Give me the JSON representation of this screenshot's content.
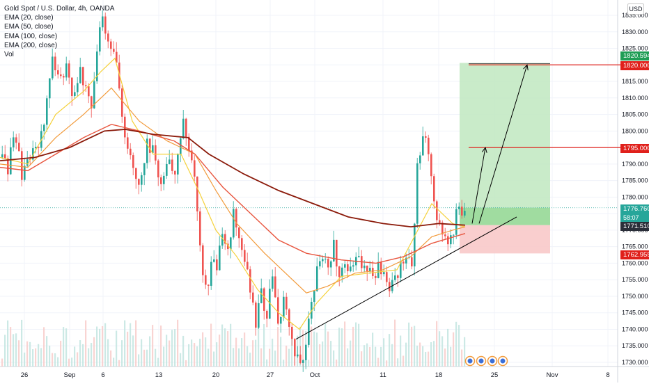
{
  "legend": {
    "title": "Gold Spot / U.S. Dollar, 4h, OANDA",
    "items": [
      "EMA (20, close)",
      "EMA (50, close)",
      "EMA (100, close)",
      "EMA (200, close)",
      "Vol"
    ]
  },
  "currency": "USD",
  "colors": {
    "up": "#26a69a",
    "down": "#ef5350",
    "ema20": "#f5d13a",
    "ema50": "#f29a3a",
    "ema100": "#e8553e",
    "ema200": "#8b1a0a",
    "target_zone": "#bfe8bf",
    "stop_zone": "#f8c9c9",
    "level_line": "#e0201b",
    "trendline": "#000000"
  },
  "chart_data": {
    "type": "candlestick",
    "symbol": "Gold Spot / U.S. Dollar",
    "timeframe": "4h",
    "ylim": [
      1728,
      1838
    ],
    "y_ticks": [
      1730,
      1735,
      1740,
      1745,
      1750,
      1755,
      1760,
      1765,
      1770,
      1775,
      1780,
      1785,
      1790,
      1795,
      1800,
      1805,
      1810,
      1815,
      1820,
      1825,
      1830,
      1835
    ],
    "x_ticks": [
      "26",
      "Sep",
      "6",
      "13",
      "20",
      "27",
      "Oct",
      "11",
      "18",
      "25",
      "Nov",
      "8"
    ],
    "price_path": [
      [
        0,
        1792
      ],
      [
        10,
        1788
      ],
      [
        20,
        1800
      ],
      [
        30,
        1786
      ],
      [
        45,
        1793
      ],
      [
        60,
        1800
      ],
      [
        72,
        1822
      ],
      [
        85,
        1815
      ],
      [
        95,
        1820
      ],
      [
        105,
        1810
      ],
      [
        115,
        1818
      ],
      [
        125,
        1812
      ],
      [
        132,
        1808
      ],
      [
        140,
        1828
      ],
      [
        145,
        1835
      ],
      [
        150,
        1830
      ],
      [
        158,
        1826
      ],
      [
        165,
        1820
      ],
      [
        172,
        1808
      ],
      [
        180,
        1796
      ],
      [
        190,
        1790
      ],
      [
        200,
        1785
      ],
      [
        210,
        1798
      ],
      [
        220,
        1792
      ],
      [
        230,
        1785
      ],
      [
        240,
        1790
      ],
      [
        248,
        1786
      ],
      [
        256,
        1798
      ],
      [
        264,
        1803
      ],
      [
        272,
        1792
      ],
      [
        280,
        1784
      ],
      [
        288,
        1760
      ],
      [
        295,
        1752
      ],
      [
        302,
        1760
      ],
      [
        310,
        1758
      ],
      [
        318,
        1768
      ],
      [
        326,
        1765
      ],
      [
        334,
        1775
      ],
      [
        342,
        1770
      ],
      [
        350,
        1760
      ],
      [
        358,
        1752
      ],
      [
        366,
        1742
      ],
      [
        374,
        1750
      ],
      [
        382,
        1745
      ],
      [
        390,
        1755
      ],
      [
        398,
        1740
      ],
      [
        405,
        1750
      ],
      [
        412,
        1745
      ],
      [
        418,
        1738
      ],
      [
        424,
        1732
      ],
      [
        430,
        1728
      ],
      [
        436,
        1735
      ],
      [
        442,
        1742
      ],
      [
        448,
        1752
      ],
      [
        455,
        1758
      ],
      [
        462,
        1762
      ],
      [
        470,
        1760
      ],
      [
        478,
        1765
      ],
      [
        486,
        1758
      ],
      [
        494,
        1760
      ],
      [
        502,
        1757
      ],
      [
        510,
        1762
      ],
      [
        518,
        1758
      ],
      [
        526,
        1760
      ],
      [
        534,
        1755
      ],
      [
        542,
        1758
      ],
      [
        550,
        1756
      ],
      [
        558,
        1752
      ],
      [
        566,
        1755
      ],
      [
        574,
        1760
      ],
      [
        582,
        1762
      ],
      [
        590,
        1758
      ],
      [
        598,
        1790
      ],
      [
        604,
        1795
      ],
      [
        610,
        1798
      ],
      [
        616,
        1792
      ],
      [
        622,
        1780
      ],
      [
        628,
        1772
      ],
      [
        634,
        1770
      ],
      [
        640,
        1766
      ],
      [
        646,
        1768
      ],
      [
        652,
        1772
      ],
      [
        656,
        1780
      ],
      [
        660,
        1775
      ],
      [
        664,
        1772
      ],
      [
        668,
        1776.76
      ]
    ],
    "series": [
      {
        "name": "EMA (20, close)",
        "points": [
          [
            0,
            1792
          ],
          [
            40,
            1790
          ],
          [
            80,
            1805
          ],
          [
            120,
            1812
          ],
          [
            145,
            1818
          ],
          [
            165,
            1822
          ],
          [
            190,
            1803
          ],
          [
            220,
            1793
          ],
          [
            260,
            1793
          ],
          [
            285,
            1782
          ],
          [
            310,
            1770
          ],
          [
            340,
            1762
          ],
          [
            370,
            1752
          ],
          [
            400,
            1745
          ],
          [
            430,
            1740
          ],
          [
            455,
            1748
          ],
          [
            490,
            1756
          ],
          [
            530,
            1757
          ],
          [
            570,
            1758
          ],
          [
            600,
            1770
          ],
          [
            620,
            1778
          ],
          [
            650,
            1772
          ],
          [
            668,
            1771
          ]
        ]
      },
      {
        "name": "EMA (50, close)",
        "points": [
          [
            0,
            1790
          ],
          [
            40,
            1789
          ],
          [
            80,
            1798
          ],
          [
            120,
            1805
          ],
          [
            160,
            1813
          ],
          [
            200,
            1803
          ],
          [
            240,
            1797
          ],
          [
            280,
            1793
          ],
          [
            310,
            1782
          ],
          [
            340,
            1772
          ],
          [
            380,
            1763
          ],
          [
            420,
            1755
          ],
          [
            440,
            1751
          ],
          [
            470,
            1753
          ],
          [
            510,
            1757
          ],
          [
            550,
            1758
          ],
          [
            590,
            1762
          ],
          [
            620,
            1768
          ],
          [
            650,
            1770
          ],
          [
            668,
            1771
          ]
        ]
      },
      {
        "name": "EMA (100, close)",
        "points": [
          [
            0,
            1789
          ],
          [
            40,
            1788
          ],
          [
            80,
            1793
          ],
          [
            120,
            1798
          ],
          [
            160,
            1802
          ],
          [
            200,
            1800
          ],
          [
            250,
            1797
          ],
          [
            280,
            1793
          ],
          [
            320,
            1783
          ],
          [
            360,
            1775
          ],
          [
            400,
            1767
          ],
          [
            440,
            1763
          ],
          [
            490,
            1761
          ],
          [
            540,
            1760
          ],
          [
            580,
            1762
          ],
          [
            620,
            1766
          ],
          [
            668,
            1769
          ]
        ]
      },
      {
        "name": "EMA (200, close)",
        "points": [
          [
            0,
            1791
          ],
          [
            50,
            1792
          ],
          [
            100,
            1795
          ],
          [
            150,
            1800
          ],
          [
            180,
            1800.5
          ],
          [
            220,
            1799
          ],
          [
            270,
            1798
          ],
          [
            300,
            1793
          ],
          [
            350,
            1787
          ],
          [
            400,
            1782
          ],
          [
            450,
            1778
          ],
          [
            500,
            1774
          ],
          [
            550,
            1772
          ],
          [
            590,
            1771
          ],
          [
            630,
            1772
          ],
          [
            668,
            1771.5
          ]
        ]
      }
    ],
    "volume_hint": "Vol",
    "trendline": {
      "from": [
        425,
        1737
      ],
      "to": [
        742,
        1774
      ]
    },
    "position": {
      "entry": 1771.51,
      "stop": 1762.955,
      "target": 1820.594,
      "levels": [
        1820.0,
        1795.0
      ],
      "projection_arrows": [
        {
          "from": [
            678,
            1772
          ],
          "to": [
            697,
            1795
          ]
        },
        {
          "from": [
            688,
            1772
          ],
          "to": [
            757,
            1820
          ]
        }
      ]
    },
    "current_price": 1776.76,
    "countdown": "58:07",
    "price_labels": [
      {
        "value": "1820.594",
        "style": "green"
      },
      {
        "value": "1820.000",
        "style": "red"
      },
      {
        "value": "1795.000",
        "style": "red"
      },
      {
        "value": "1776.760",
        "style": "teal"
      },
      {
        "value": "1771.510",
        "style": "dark"
      },
      {
        "value": "1762.955",
        "style": "red"
      }
    ]
  }
}
